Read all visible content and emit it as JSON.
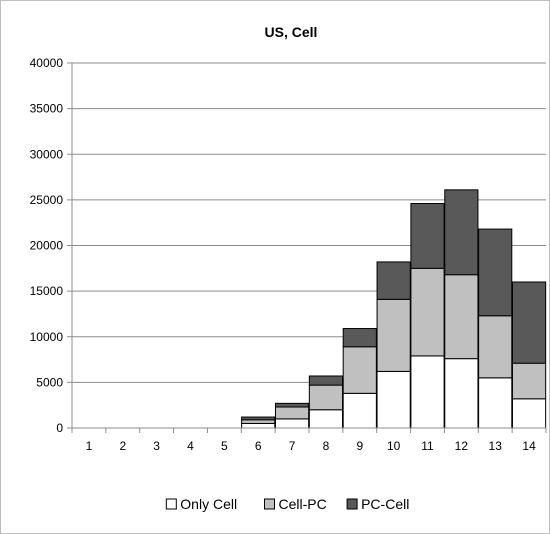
{
  "chart_data": {
    "type": "bar",
    "stacked": true,
    "title": "US, Cell",
    "xlabel": "",
    "ylabel": "",
    "categories": [
      "1",
      "2",
      "3",
      "4",
      "5",
      "6",
      "7",
      "8",
      "9",
      "10",
      "11",
      "12",
      "13",
      "14"
    ],
    "ylim": [
      0,
      40000
    ],
    "yticks": [
      0,
      5000,
      10000,
      15000,
      20000,
      25000,
      30000,
      35000,
      40000
    ],
    "grid": true,
    "legend_position": "bottom",
    "series": [
      {
        "name": "Only Cell",
        "color": "#ffffff",
        "values": [
          0,
          0,
          0,
          0,
          0,
          500,
          1000,
          2000,
          3800,
          6200,
          7900,
          7600,
          5500,
          3200
        ]
      },
      {
        "name": "Cell-PC",
        "color": "#c0c0c0",
        "values": [
          0,
          0,
          0,
          0,
          0,
          400,
          1300,
          2700,
          5100,
          7900,
          9600,
          9200,
          6800,
          3900
        ]
      },
      {
        "name": "PC-Cell",
        "color": "#595959",
        "values": [
          0,
          0,
          0,
          0,
          0,
          300,
          400,
          1000,
          2000,
          4100,
          7100,
          9300,
          9500,
          8900
        ]
      }
    ]
  }
}
